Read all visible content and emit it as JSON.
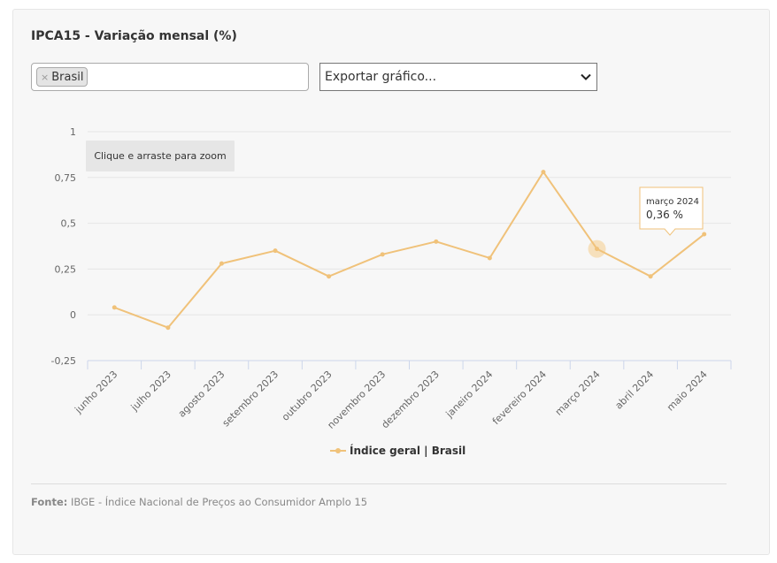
{
  "card": {
    "title": "IPCA15 - Variação mensal (%)"
  },
  "controls": {
    "region_tag": "Brasil",
    "export_select": "Exportar gráfico..."
  },
  "zoom_hint": "Clique e arraste para zoom",
  "tooltip": {
    "date": "março 2024",
    "value": "0,36 %",
    "index": 9
  },
  "legend": {
    "label": "Índice geral | Brasil"
  },
  "footer": {
    "source_label": "Fonte:",
    "source_text": " IBGE - Índice Nacional de Preços ao Consumidor Amplo 15"
  },
  "colors": {
    "series": "#f0c27a",
    "hover_halo": "#f5d9ad",
    "grid": "#e6e6e6",
    "axis": "#ccd6eb",
    "text_muted": "#666666"
  },
  "chart_data": {
    "type": "line",
    "title": "IPCA15 - Variação mensal (%)",
    "categories": [
      "junho 2023",
      "julho 2023",
      "agosto 2023",
      "setembro 2023",
      "outubro 2023",
      "novembro 2023",
      "dezembro 2023",
      "janeiro 2024",
      "fevereiro 2024",
      "março 2024",
      "abril 2024",
      "maio 2024"
    ],
    "series": [
      {
        "name": "Índice geral | Brasil",
        "values": [
          0.04,
          -0.07,
          0.28,
          0.35,
          0.21,
          0.33,
          0.4,
          0.31,
          0.78,
          0.36,
          0.21,
          0.44
        ]
      }
    ],
    "y_ticks": [
      "-0,25",
      "0",
      "0,25",
      "0,5",
      "0,75",
      "1"
    ],
    "ylim": [
      -0.25,
      1
    ],
    "xlabel": "",
    "ylabel": "",
    "grid": true,
    "legend_position": "bottom-center"
  }
}
